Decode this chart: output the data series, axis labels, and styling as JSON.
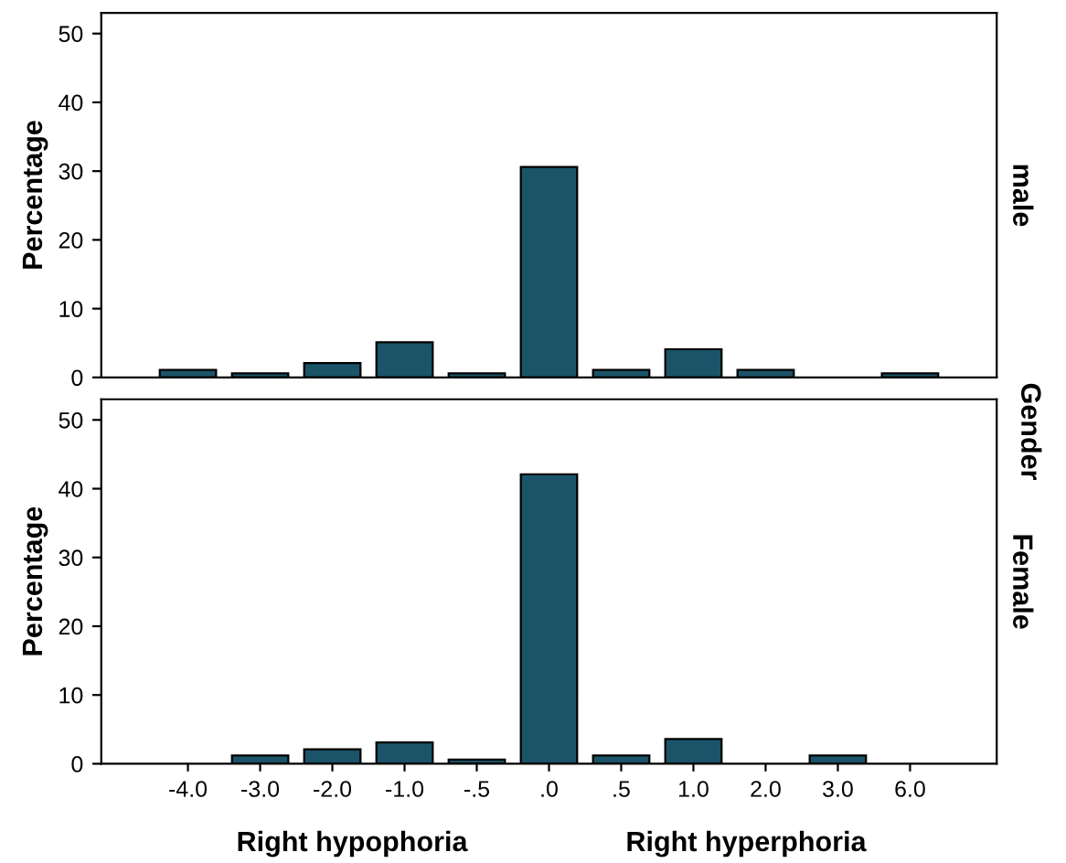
{
  "chart_data": [
    {
      "type": "bar",
      "ylabel": "Percentage",
      "y2label": "male",
      "categories": [
        "-4.0",
        "-3.0",
        "-2.0",
        "-1.0",
        "-.5",
        ".0",
        ".5",
        "1.0",
        "2.0",
        "3.0",
        "6.0"
      ],
      "series": [
        {
          "color": "#1b5468",
          "values": [
            1.1,
            0.6,
            2.1,
            5.1,
            0.6,
            30.6,
            1.1,
            4.1,
            1.1,
            null,
            0.6
          ]
        }
      ],
      "ylim": [
        0,
        53
      ],
      "yticks": [
        0,
        10,
        20,
        30,
        40,
        50
      ],
      "tick_labels": "y",
      "annotations": [
        "Gender"
      ]
    },
    {
      "type": "bar",
      "ylabel": "Percentage",
      "y2label": "Female",
      "categories": [
        "-4.0",
        "-3.0",
        "-2.0",
        "-1.0",
        "-.5",
        ".0",
        ".5",
        "1.0",
        "2.0",
        "3.0",
        "6.0"
      ],
      "series": [
        {
          "color": "#1b5468",
          "values": [
            null,
            1.2,
            2.1,
            3.1,
            0.6,
            42.1,
            1.2,
            3.6,
            null,
            1.2,
            null
          ]
        }
      ],
      "ylim": [
        0,
        53
      ],
      "yticks": [
        0,
        10,
        20,
        30,
        40,
        50
      ],
      "annotations": [
        "Right hypophoria",
        "Right hyperphoria"
      ]
    }
  ]
}
